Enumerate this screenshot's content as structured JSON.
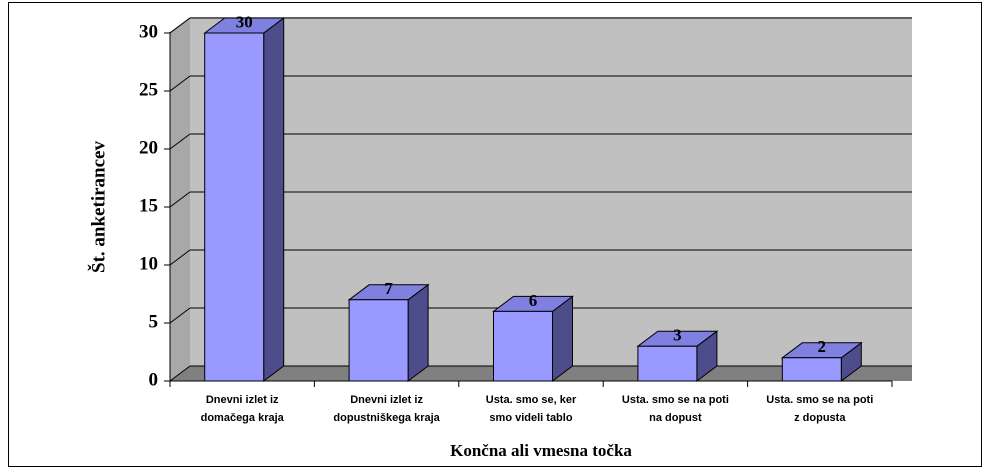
{
  "chart_data": {
    "type": "bar3d",
    "categories": [
      [
        "Dnevni izlet iz",
        "domačega kraja"
      ],
      [
        "Dnevni izlet iz",
        "dopustniškega kraja"
      ],
      [
        "Usta. smo se, ker",
        "smo videli tablo"
      ],
      [
        "Usta. smo se na poti",
        "na dopust"
      ],
      [
        "Usta. smo se na poti",
        "z dopusta"
      ]
    ],
    "values": [
      30,
      7,
      6,
      3,
      2
    ],
    "color": "#9999ff",
    "ylim": [
      0,
      30
    ],
    "yticks": [
      0,
      5,
      10,
      15,
      20,
      25,
      30
    ],
    "grid": true,
    "xlabel": "Končna ali vmesna točka",
    "ylabel": "Št. anketirancev"
  }
}
